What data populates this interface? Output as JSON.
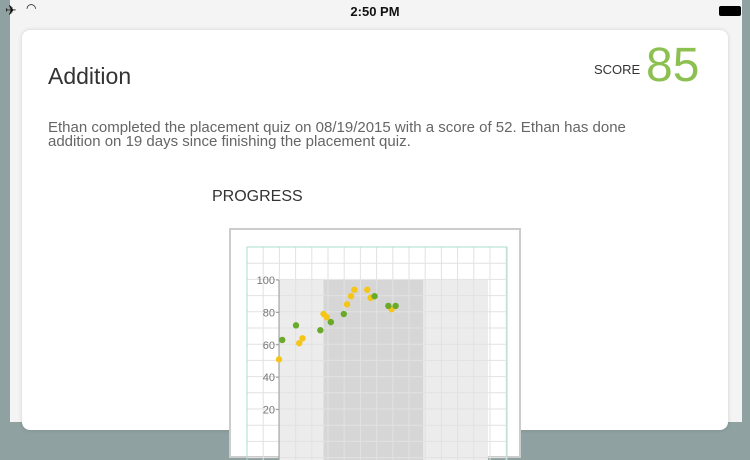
{
  "status_bar": {
    "time": "2:50 PM",
    "icons": [
      "airplane-icon",
      "wifi-icon",
      "battery-icon"
    ]
  },
  "card": {
    "title": "Addition",
    "score_label": "SCORE",
    "score": "85",
    "score_color": "#8cc152",
    "description": "Ethan completed the placement quiz on 08/19/2015 with a score of 52. Ethan has done addition on 19 days since finishing the placement quiz.",
    "progress_label": "PROGRESS"
  },
  "chart_data": {
    "type": "scatter",
    "title": "PROGRESS",
    "ylim": [
      0,
      100
    ],
    "yticks": [
      "100",
      "80",
      "60",
      "40",
      "20"
    ],
    "grid": true,
    "x_units": "grid cells",
    "colors": {
      "yellow": "#f5c518",
      "green": "#6aaa2a"
    },
    "series": [
      {
        "color": "yellow",
        "points": [
          [
            0,
            51
          ],
          [
            1.25,
            61
          ],
          [
            1.45,
            64
          ],
          [
            2.75,
            79
          ],
          [
            2.95,
            77
          ],
          [
            4.2,
            85
          ],
          [
            4.45,
            90
          ],
          [
            4.65,
            94
          ],
          [
            5.45,
            94
          ],
          [
            5.65,
            89
          ],
          [
            6.95,
            82
          ]
        ]
      },
      {
        "color": "green",
        "points": [
          [
            0.2,
            63
          ],
          [
            1.05,
            72
          ],
          [
            2.55,
            69
          ],
          [
            3.2,
            74
          ],
          [
            4,
            79
          ],
          [
            5.9,
            90
          ],
          [
            6.75,
            84
          ],
          [
            7.2,
            84
          ]
        ]
      }
    ],
    "bands": [
      {
        "from": 0,
        "to": 12.9,
        "shade": "light"
      },
      {
        "from": 2.75,
        "to": 8.9,
        "shade": "dark"
      }
    ]
  }
}
